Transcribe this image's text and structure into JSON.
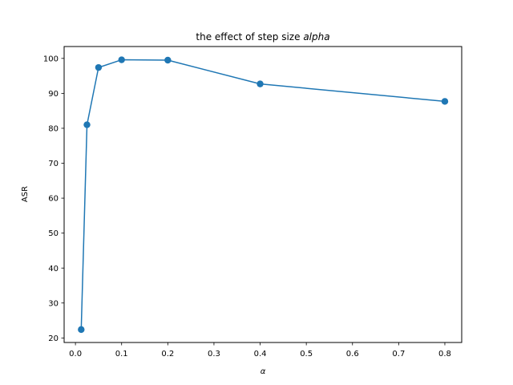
{
  "chart_data": {
    "type": "line",
    "title": "the effect of step size ",
    "title_italic": "alpha",
    "xlabel": "α",
    "ylabel": "ASR",
    "xlim": [
      -0.0245,
      0.8365
    ],
    "ylim": [
      18.7,
      103.4
    ],
    "xticks": [
      0.0,
      0.1,
      0.2,
      0.3,
      0.4,
      0.5,
      0.6,
      0.7,
      0.8
    ],
    "xtick_labels": [
      "0.0",
      "0.1",
      "0.2",
      "0.3",
      "0.4",
      "0.5",
      "0.6",
      "0.7",
      "0.8"
    ],
    "yticks": [
      20,
      30,
      40,
      50,
      60,
      70,
      80,
      90,
      100
    ],
    "ytick_labels": [
      "20",
      "30",
      "40",
      "50",
      "60",
      "70",
      "80",
      "90",
      "100"
    ],
    "grid": false,
    "legend": false,
    "series": [
      {
        "color": "#1f77b4",
        "marker": "circle",
        "x": [
          0.0125,
          0.025,
          0.05,
          0.1,
          0.2,
          0.4,
          0.8
        ],
        "y": [
          22.4,
          81.0,
          97.4,
          99.6,
          99.5,
          92.7,
          87.7
        ]
      }
    ]
  }
}
